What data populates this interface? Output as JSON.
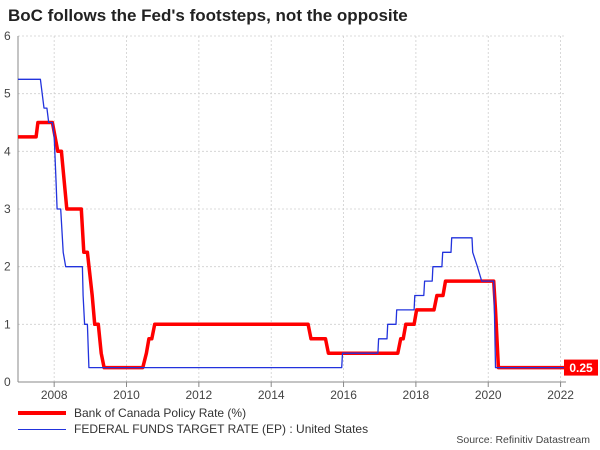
{
  "title": "BoC follows the Fed's footsteps, not the opposite",
  "source": "Source: Refinitiv Datastream",
  "chart_data": {
    "type": "line",
    "title": "BoC follows the Fed's footsteps, not the opposite",
    "xlabel": "",
    "ylabel": "",
    "xlim": [
      2007.0,
      2022.15
    ],
    "ylim": [
      0,
      6
    ],
    "x_ticks": [
      2008,
      2010,
      2012,
      2014,
      2016,
      2018,
      2020,
      2022
    ],
    "y_ticks": [
      0,
      1,
      2,
      3,
      4,
      5,
      6
    ],
    "grid": "horizontal and vertical, dashed",
    "legend_position": "bottom-left",
    "end_label": "0.25",
    "series": [
      {
        "name": "Bank of Canada Policy Rate (%)",
        "color": "#ff0000",
        "points": [
          [
            2007.0,
            4.25
          ],
          [
            2007.5,
            4.25
          ],
          [
            2007.55,
            4.5
          ],
          [
            2007.95,
            4.5
          ],
          [
            2008.1,
            4.0
          ],
          [
            2008.2,
            4.0
          ],
          [
            2008.35,
            3.0
          ],
          [
            2008.75,
            3.0
          ],
          [
            2008.82,
            2.25
          ],
          [
            2008.92,
            2.25
          ],
          [
            2009.05,
            1.5
          ],
          [
            2009.12,
            1.0
          ],
          [
            2009.22,
            1.0
          ],
          [
            2009.3,
            0.5
          ],
          [
            2009.38,
            0.25
          ],
          [
            2010.45,
            0.25
          ],
          [
            2010.55,
            0.5
          ],
          [
            2010.62,
            0.75
          ],
          [
            2010.7,
            0.75
          ],
          [
            2010.78,
            1.0
          ],
          [
            2015.02,
            1.0
          ],
          [
            2015.1,
            0.75
          ],
          [
            2015.5,
            0.75
          ],
          [
            2015.58,
            0.5
          ],
          [
            2017.5,
            0.5
          ],
          [
            2017.58,
            0.75
          ],
          [
            2017.65,
            0.75
          ],
          [
            2017.72,
            1.0
          ],
          [
            2017.95,
            1.0
          ],
          [
            2018.02,
            1.25
          ],
          [
            2018.5,
            1.25
          ],
          [
            2018.58,
            1.5
          ],
          [
            2018.75,
            1.5
          ],
          [
            2018.82,
            1.75
          ],
          [
            2020.15,
            1.75
          ],
          [
            2020.2,
            1.25
          ],
          [
            2020.28,
            0.25
          ],
          [
            2022.15,
            0.25
          ]
        ]
      },
      {
        "name": "FEDERAL FUNDS TARGET RATE (EP) : United States",
        "color": "#2233dd",
        "points": [
          [
            2007.0,
            5.25
          ],
          [
            2007.62,
            5.25
          ],
          [
            2007.72,
            4.75
          ],
          [
            2007.8,
            4.75
          ],
          [
            2007.85,
            4.5
          ],
          [
            2007.95,
            4.5
          ],
          [
            2008.0,
            4.25
          ],
          [
            2008.05,
            3.5
          ],
          [
            2008.08,
            3.0
          ],
          [
            2008.18,
            3.0
          ],
          [
            2008.25,
            2.25
          ],
          [
            2008.32,
            2.0
          ],
          [
            2008.78,
            2.0
          ],
          [
            2008.8,
            1.5
          ],
          [
            2008.84,
            1.0
          ],
          [
            2008.92,
            1.0
          ],
          [
            2008.96,
            0.25
          ],
          [
            2015.95,
            0.25
          ],
          [
            2015.97,
            0.5
          ],
          [
            2016.95,
            0.5
          ],
          [
            2016.97,
            0.75
          ],
          [
            2017.2,
            0.75
          ],
          [
            2017.22,
            1.0
          ],
          [
            2017.45,
            1.0
          ],
          [
            2017.47,
            1.25
          ],
          [
            2017.95,
            1.25
          ],
          [
            2017.97,
            1.5
          ],
          [
            2018.22,
            1.5
          ],
          [
            2018.24,
            1.75
          ],
          [
            2018.45,
            1.75
          ],
          [
            2018.47,
            2.0
          ],
          [
            2018.72,
            2.0
          ],
          [
            2018.74,
            2.25
          ],
          [
            2018.97,
            2.25
          ],
          [
            2018.99,
            2.5
          ],
          [
            2019.55,
            2.5
          ],
          [
            2019.57,
            2.25
          ],
          [
            2019.7,
            2.0
          ],
          [
            2019.82,
            1.75
          ],
          [
            2020.15,
            1.75
          ],
          [
            2020.17,
            1.25
          ],
          [
            2020.2,
            0.25
          ],
          [
            2022.15,
            0.25
          ]
        ]
      }
    ]
  }
}
